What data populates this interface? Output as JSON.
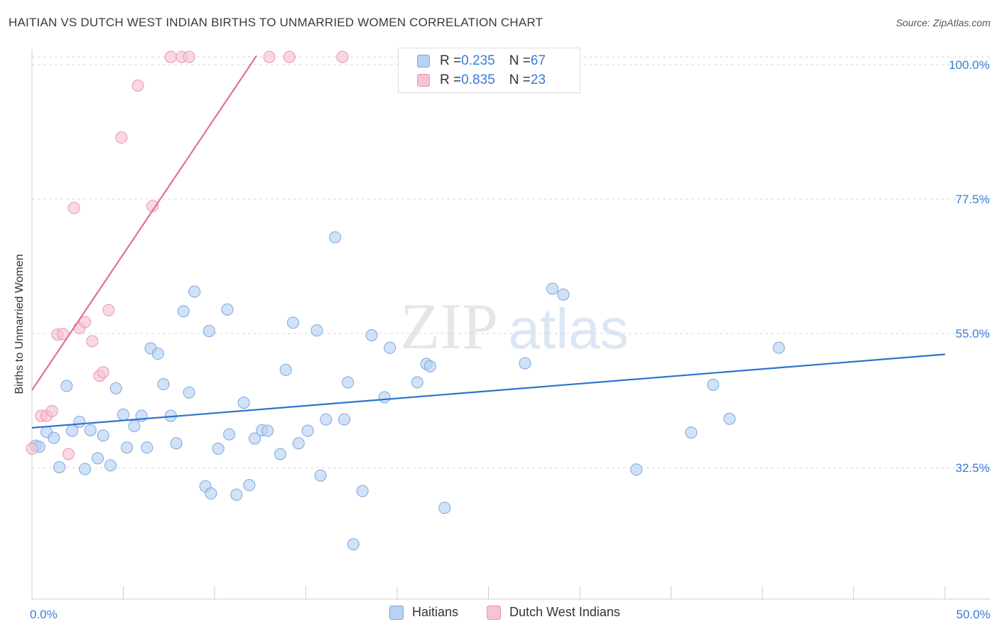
{
  "title": "HAITIAN VS DUTCH WEST INDIAN BIRTHS TO UNMARRIED WOMEN CORRELATION CHART",
  "source": "Source: ZipAtlas.com",
  "watermark": {
    "zip": "ZIP",
    "atlas": "atlas"
  },
  "legend": {
    "haitians": {
      "r_label": "R = ",
      "r": "0.235",
      "n_label": "N = ",
      "n": "67"
    },
    "dutch": {
      "r_label": "R = ",
      "r": "0.835",
      "n_label": "N = ",
      "n": "23"
    }
  },
  "colors": {
    "haitians_fill": "#b8d3f2",
    "haitians_stroke": "#7aa7dd",
    "haitians_line": "#2f74cc",
    "dutch_fill": "#f7c3d3",
    "dutch_stroke": "#ea93b0",
    "dutch_line": "#e0709a",
    "value_text": "#3a7bd5",
    "grid": "#d8d8d8"
  },
  "chart_data": {
    "type": "scatter",
    "title": "HAITIAN VS DUTCH WEST INDIAN BIRTHS TO UNMARRIED WOMEN CORRELATION CHART",
    "xlabel": "",
    "ylabel": "Births to Unmarried Women",
    "xlim": [
      0,
      50
    ],
    "ylim": [
      10.5,
      102.5
    ],
    "x_tick_labels": [
      "0.0%",
      "50.0%"
    ],
    "y_ticks": [
      32.5,
      55.0,
      77.5,
      100.0
    ],
    "y_tick_labels": [
      "32.5%",
      "55.0%",
      "77.5%",
      "100.0%"
    ],
    "grid": "horizontal dashed",
    "legend_placement": "top-center",
    "series": [
      {
        "name": "Haitians",
        "points": [
          [
            0.2,
            36.2
          ],
          [
            0.4,
            36.0
          ],
          [
            0.8,
            38.5
          ],
          [
            1.2,
            37.5
          ],
          [
            1.5,
            32.6
          ],
          [
            1.9,
            46.2
          ],
          [
            2.2,
            38.7
          ],
          [
            2.6,
            40.2
          ],
          [
            2.9,
            32.3
          ],
          [
            3.2,
            38.8
          ],
          [
            3.6,
            34.1
          ],
          [
            3.9,
            37.9
          ],
          [
            4.3,
            32.9
          ],
          [
            4.6,
            45.8
          ],
          [
            5.0,
            41.4
          ],
          [
            5.2,
            35.9
          ],
          [
            5.6,
            39.5
          ],
          [
            6.0,
            41.2
          ],
          [
            6.3,
            35.9
          ],
          [
            6.5,
            52.5
          ],
          [
            6.9,
            51.6
          ],
          [
            7.2,
            46.5
          ],
          [
            7.6,
            41.2
          ],
          [
            7.9,
            36.6
          ],
          [
            8.3,
            58.7
          ],
          [
            8.6,
            45.1
          ],
          [
            8.9,
            62.0
          ],
          [
            9.5,
            29.4
          ],
          [
            9.7,
            55.4
          ],
          [
            9.8,
            28.2
          ],
          [
            10.2,
            35.7
          ],
          [
            10.7,
            59.0
          ],
          [
            10.8,
            38.1
          ],
          [
            11.2,
            28.0
          ],
          [
            11.6,
            43.4
          ],
          [
            11.9,
            29.6
          ],
          [
            12.2,
            37.4
          ],
          [
            12.6,
            38.8
          ],
          [
            12.9,
            38.7
          ],
          [
            13.6,
            34.8
          ],
          [
            13.9,
            48.9
          ],
          [
            14.3,
            56.8
          ],
          [
            14.6,
            36.6
          ],
          [
            15.1,
            38.7
          ],
          [
            15.6,
            55.5
          ],
          [
            15.8,
            31.2
          ],
          [
            16.1,
            40.6
          ],
          [
            16.6,
            71.1
          ],
          [
            17.1,
            40.6
          ],
          [
            17.3,
            46.8
          ],
          [
            17.6,
            19.7
          ],
          [
            18.1,
            28.6
          ],
          [
            18.6,
            54.7
          ],
          [
            19.3,
            44.3
          ],
          [
            19.6,
            52.6
          ],
          [
            21.1,
            46.8
          ],
          [
            21.6,
            49.9
          ],
          [
            21.8,
            49.5
          ],
          [
            22.6,
            25.8
          ],
          [
            27.0,
            50.0
          ],
          [
            28.5,
            62.5
          ],
          [
            29.1,
            61.5
          ],
          [
            33.1,
            32.2
          ],
          [
            36.1,
            38.4
          ],
          [
            37.3,
            46.4
          ],
          [
            38.2,
            40.7
          ],
          [
            40.9,
            52.6
          ]
        ]
      },
      {
        "name": "Dutch West Indians",
        "points": [
          [
            0.0,
            35.7
          ],
          [
            0.5,
            41.2
          ],
          [
            0.8,
            41.2
          ],
          [
            1.1,
            42.0
          ],
          [
            1.4,
            54.8
          ],
          [
            1.7,
            54.9
          ],
          [
            2.0,
            34.8
          ],
          [
            2.3,
            76.0
          ],
          [
            2.6,
            55.9
          ],
          [
            2.9,
            56.9
          ],
          [
            3.3,
            53.7
          ],
          [
            3.7,
            47.9
          ],
          [
            3.9,
            48.5
          ],
          [
            4.2,
            58.9
          ],
          [
            4.9,
            87.8
          ],
          [
            5.8,
            96.5
          ],
          [
            6.6,
            76.3
          ],
          [
            7.6,
            101.3
          ],
          [
            8.2,
            101.3
          ],
          [
            8.6,
            101.3
          ],
          [
            13.0,
            101.3
          ],
          [
            14.1,
            101.3
          ],
          [
            17.0,
            101.3
          ]
        ]
      }
    ],
    "trendlines": [
      {
        "series": "Haitians",
        "from": [
          0,
          39.2
        ],
        "to": [
          50,
          51.5
        ]
      },
      {
        "series": "Dutch West Indians",
        "from": [
          0,
          45.5
        ],
        "to": [
          12.3,
          101.5
        ]
      }
    ]
  },
  "bottom_legend": [
    "Haitians",
    "Dutch West Indians"
  ]
}
